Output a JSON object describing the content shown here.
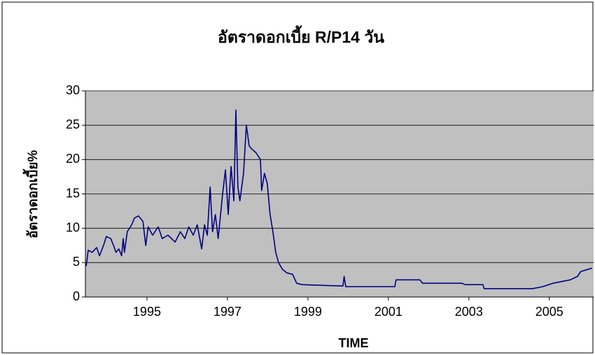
{
  "chart_data": {
    "type": "line",
    "title": "อัตราดอกเบี้ย R/P14 วัน",
    "x_label": "TIME",
    "y_label": "อัตราดอกเบี้ย%",
    "color": "#000080",
    "grid": true,
    "xlim": [
      1993.47,
      2006.1
    ],
    "xticks": [
      1995,
      1997,
      1999,
      2001,
      2003,
      2005
    ],
    "ylim": [
      0,
      30
    ],
    "yticks": [
      0,
      5,
      10,
      15,
      20,
      25,
      30
    ],
    "x": [
      1993.49,
      1993.54,
      1993.64,
      1993.75,
      1993.82,
      1993.92,
      1993.99,
      1994.1,
      1994.17,
      1994.23,
      1994.3,
      1994.37,
      1994.41,
      1994.44,
      1994.51,
      1994.62,
      1994.69,
      1994.79,
      1994.9,
      1994.93,
      1994.97,
      1995.03,
      1995.14,
      1995.28,
      1995.38,
      1995.52,
      1995.7,
      1995.83,
      1995.94,
      1996.04,
      1996.15,
      1996.25,
      1996.36,
      1996.43,
      1996.5,
      1996.57,
      1996.63,
      1996.7,
      1996.77,
      1996.88,
      1996.95,
      1997.02,
      1997.09,
      1997.16,
      1997.21,
      1997.26,
      1997.31,
      1997.4,
      1997.47,
      1997.54,
      1997.61,
      1997.71,
      1997.82,
      1997.85,
      1997.92,
      1997.99,
      1998.06,
      1998.13,
      1998.2,
      1998.27,
      1998.37,
      1998.48,
      1998.62,
      1998.72,
      1998.86,
      1999.35,
      1999.87,
      1999.9,
      1999.94,
      2001.16,
      2001.19,
      2001.78,
      2001.85,
      2002.83,
      2002.91,
      2003.35,
      2003.38,
      2004.57,
      2004.83,
      2005.09,
      2005.52,
      2005.7,
      2005.78,
      2006.06
    ],
    "values": [
      4.5,
      6.8,
      6.5,
      7.2,
      6.0,
      7.5,
      8.8,
      8.5,
      7.5,
      6.5,
      7.0,
      6.0,
      8.5,
      6.5,
      9.5,
      10.5,
      11.5,
      11.8,
      11.0,
      9.5,
      7.5,
      10.2,
      9.0,
      10.2,
      8.5,
      9.0,
      8.0,
      9.5,
      8.5,
      10.2,
      9.0,
      10.5,
      7.0,
      10.5,
      9.0,
      16.0,
      9.5,
      12,
      8.5,
      15,
      18.5,
      12,
      19.0,
      14,
      27.2,
      16,
      14,
      18,
      25.0,
      22,
      21.5,
      21,
      20,
      15.5,
      18,
      16.5,
      12,
      9.5,
      6.5,
      5.0,
      4.0,
      3.5,
      3.3,
      2.0,
      1.8,
      1.7,
      1.6,
      3.0,
      1.5,
      1.5,
      2.5,
      2.5,
      2.0,
      2.0,
      1.8,
      1.8,
      1.2,
      1.2,
      1.5,
      2.0,
      2.5,
      3.0,
      3.7,
      4.2
    ]
  }
}
